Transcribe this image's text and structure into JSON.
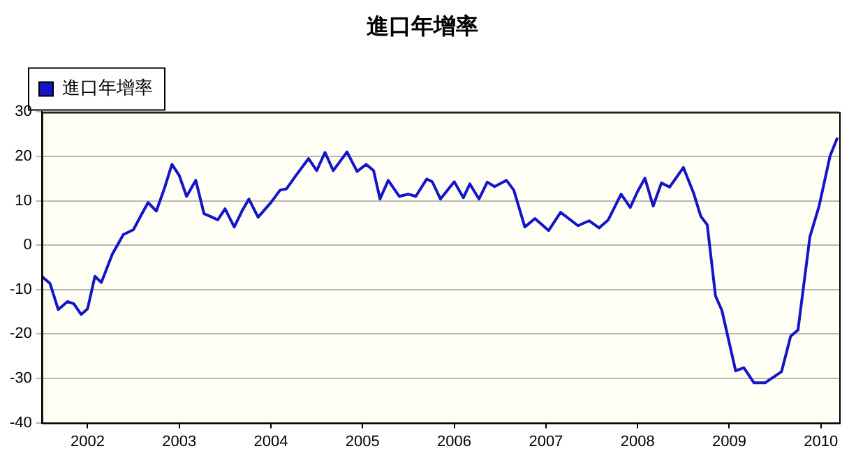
{
  "chart_data": {
    "type": "line",
    "title": "進口年增率",
    "x": [
      2001.5,
      2001.59,
      2001.68,
      2001.78,
      2001.85,
      2001.93,
      2002.0,
      2002.08,
      2002.15,
      2002.27,
      2002.39,
      2002.5,
      2002.58,
      2002.66,
      2002.75,
      2002.84,
      2002.92,
      2003.0,
      2003.08,
      2003.18,
      2003.27,
      2003.36,
      2003.42,
      2003.5,
      2003.6,
      2003.69,
      2003.76,
      2003.86,
      2004.0,
      2004.1,
      2004.17,
      2004.28,
      2004.41,
      2004.5,
      2004.59,
      2004.68,
      2004.83,
      2004.94,
      2005.04,
      2005.12,
      2005.19,
      2005.28,
      2005.4,
      2005.5,
      2005.58,
      2005.7,
      2005.76,
      2005.85,
      2006.0,
      2006.1,
      2006.17,
      2006.27,
      2006.36,
      2006.44,
      2006.57,
      2006.65,
      2006.77,
      2006.88,
      2007.03,
      2007.16,
      2007.35,
      2007.47,
      2007.58,
      2007.68,
      2007.82,
      2007.92,
      2008.0,
      2008.08,
      2008.17,
      2008.26,
      2008.35,
      2008.5,
      2008.61,
      2008.69,
      2008.76,
      2008.85,
      2008.92,
      2009.07,
      2009.16,
      2009.27,
      2009.39,
      2009.57,
      2009.67,
      2009.75,
      2009.88,
      2009.98,
      2010.1,
      2010.18
    ],
    "series": [
      {
        "name": "進口年增率",
        "color": "#1414c8",
        "values": [
          -7.0,
          -8.6,
          -14.5,
          -12.7,
          -13.2,
          -15.6,
          -14.3,
          -7.0,
          -8.4,
          -2.0,
          2.4,
          3.5,
          6.6,
          9.6,
          7.7,
          12.9,
          18.2,
          15.7,
          11.0,
          14.6,
          7.1,
          6.3,
          5.7,
          8.2,
          4.1,
          7.9,
          10.4,
          6.3,
          9.6,
          12.4,
          12.7,
          15.9,
          19.5,
          16.8,
          20.9,
          16.8,
          21.0,
          16.6,
          18.2,
          16.8,
          10.4,
          14.6,
          11.0,
          11.5,
          11.0,
          14.9,
          14.3,
          10.4,
          14.3,
          10.7,
          13.8,
          10.4,
          14.2,
          13.2,
          14.6,
          12.4,
          4.1,
          6.0,
          3.3,
          7.4,
          4.4,
          5.5,
          3.9,
          5.7,
          11.5,
          8.5,
          12.1,
          15.1,
          8.8,
          14.0,
          13.1,
          17.5,
          11.8,
          6.5,
          4.6,
          -11.4,
          -14.7,
          -28.3,
          -27.6,
          -31.0,
          -31.0,
          -28.5,
          -20.5,
          -19.1,
          1.9,
          8.8,
          20.1,
          24.2
        ]
      }
    ],
    "xlim": [
      2001.5,
      2010.2
    ],
    "xticks": [
      2002,
      2003,
      2004,
      2005,
      2006,
      2007,
      2008,
      2009,
      2010
    ],
    "ylim": [
      -40,
      30
    ],
    "yticks": [
      -40,
      -30,
      -20,
      -10,
      0,
      10,
      20,
      30
    ],
    "grid": "y",
    "legend": "top left",
    "marker": "none",
    "line_style": "solid"
  }
}
